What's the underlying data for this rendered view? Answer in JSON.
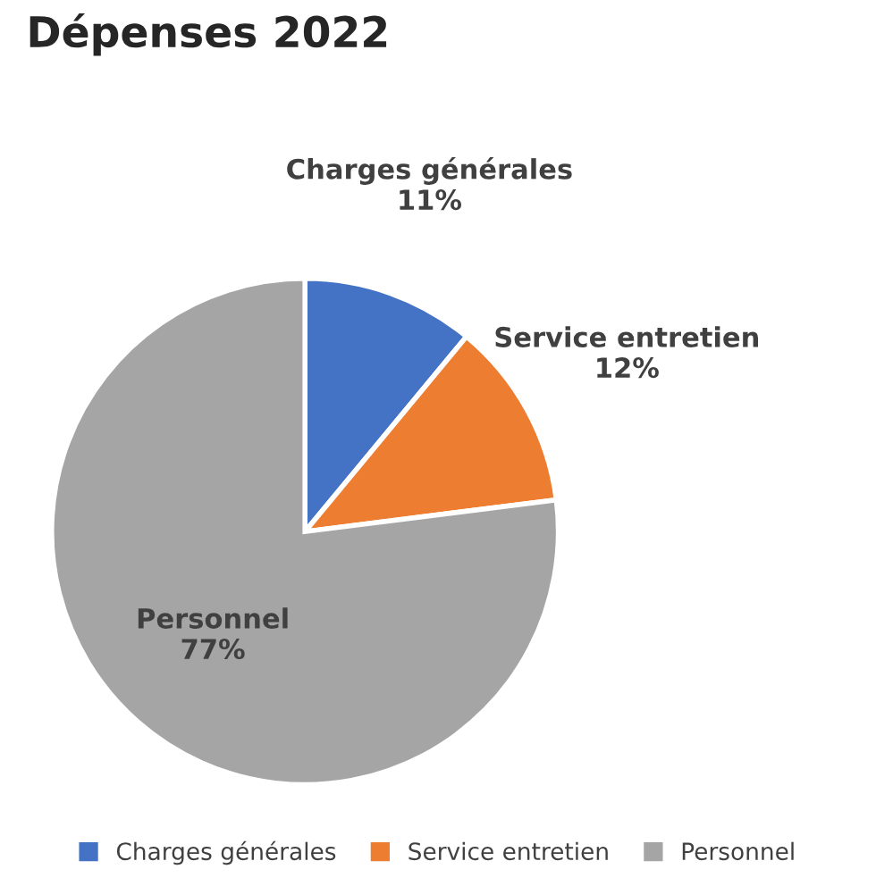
{
  "chart_data": {
    "type": "pie",
    "title": "Dépenses 2022",
    "categories": [
      "Charges générales",
      "Service entretien",
      "Personnel"
    ],
    "values": [
      11,
      12,
      77
    ],
    "value_labels": [
      "11%",
      "12%",
      "77%"
    ],
    "colors": [
      "#4472c4",
      "#ed7d31",
      "#a5a5a5"
    ],
    "legend": "bottom"
  }
}
